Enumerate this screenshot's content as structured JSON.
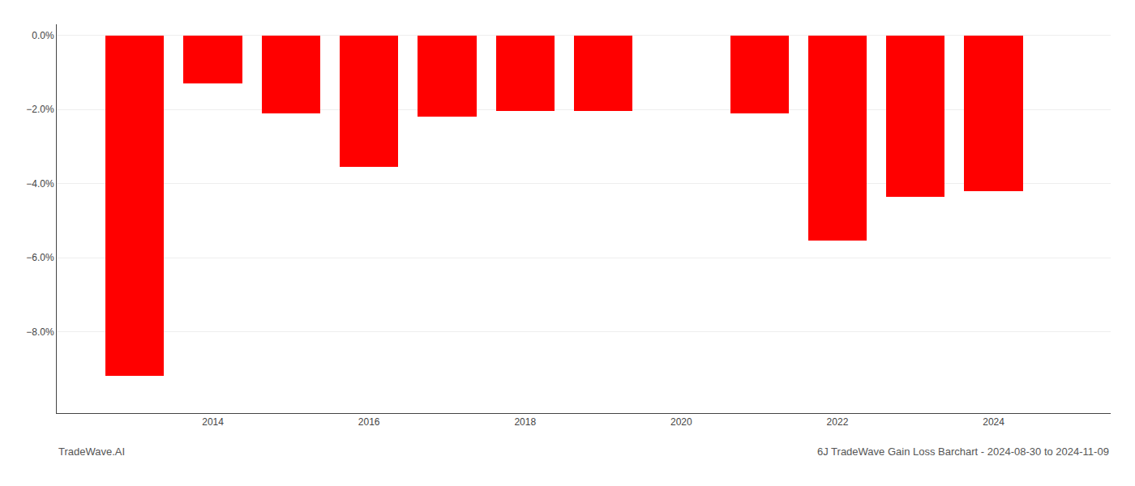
{
  "chart_data": {
    "type": "bar",
    "x": [
      2013,
      2014,
      2015,
      2016,
      2017,
      2018,
      2019,
      2021,
      2022,
      2023,
      2024
    ],
    "values": [
      -9.2,
      -1.3,
      -2.1,
      -3.55,
      -2.2,
      -2.05,
      -2.05,
      -2.1,
      -5.55,
      -4.35,
      -4.2
    ],
    "color": "#ff0000",
    "xlim": [
      2012.0,
      2025.5
    ],
    "xticks": [
      2014,
      2016,
      2018,
      2020,
      2022,
      2024
    ],
    "ylim": [
      -10.2,
      0.3
    ],
    "yticks": [
      {
        "value": 0.0,
        "label": "0.0%"
      },
      {
        "value": -2.0,
        "label": "−2.0%"
      },
      {
        "value": -4.0,
        "label": "−4.0%"
      },
      {
        "value": -6.0,
        "label": "−6.0%"
      },
      {
        "value": -8.0,
        "label": "−8.0%"
      }
    ],
    "grid": true,
    "annotations": [
      "TradeWave.AI",
      "6J TradeWave Gain Loss Barchart - 2024-08-30 to 2024-11-09"
    ]
  }
}
